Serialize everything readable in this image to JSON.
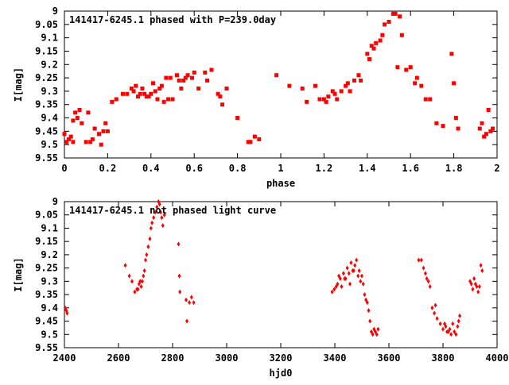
{
  "chart_data": [
    {
      "type": "scatter",
      "title": "141417-6245.1 phased with P=239.0day",
      "xlabel": "phase",
      "ylabel": "I[mag]",
      "xlim": [
        0,
        2
      ],
      "ylim": [
        9.55,
        9
      ],
      "y_inverted": true,
      "xticks": [
        0,
        0.2,
        0.4,
        0.6,
        0.8,
        1,
        1.2,
        1.4,
        1.6,
        1.8,
        2
      ],
      "xtick_labels": [
        "0",
        "0.2",
        "0.4",
        "0.6",
        "0.8",
        "1",
        "1.2",
        "1.4",
        "1.6",
        "1.8",
        "2"
      ],
      "yticks": [
        9,
        9.05,
        9.1,
        9.15,
        9.2,
        9.25,
        9.3,
        9.35,
        9.4,
        9.45,
        9.5,
        9.55
      ],
      "ytick_labels": [
        "9",
        "9.05",
        "9.1",
        "9.15",
        "9.2",
        "9.25",
        "9.3",
        "9.35",
        "9.4",
        "9.45",
        "9.5",
        "9.55"
      ],
      "grid": false,
      "marker_color": "#ff0000",
      "marker": "square",
      "series": [
        {
          "x": [
            0.0,
            0.01,
            0.02,
            0.03,
            0.04,
            0.04,
            0.05,
            0.06,
            0.07,
            0.08,
            0.1,
            0.11,
            0.12,
            0.13,
            0.14,
            0.16,
            0.17,
            0.18,
            0.19,
            0.2,
            0.22,
            0.24,
            0.27,
            0.29,
            0.31,
            0.32,
            0.33,
            0.34,
            0.35,
            0.36,
            0.37,
            0.38,
            0.39,
            0.4,
            0.41,
            0.42,
            0.43,
            0.44,
            0.45,
            0.46,
            0.47,
            0.48,
            0.49,
            0.5,
            0.52,
            0.53,
            0.54,
            0.55,
            0.56,
            0.57,
            0.59,
            0.6,
            0.62,
            0.65,
            0.66,
            0.68,
            0.71,
            0.72,
            0.73,
            0.75,
            0.8,
            0.85,
            0.86,
            0.88,
            0.9,
            0.98,
            1.04,
            1.1,
            1.12,
            1.16,
            1.18,
            1.2,
            1.21,
            1.22,
            1.24,
            1.25,
            1.26,
            1.28,
            1.3,
            1.31,
            1.32,
            1.34,
            1.36,
            1.37,
            1.4,
            1.41,
            1.42,
            1.43,
            1.44,
            1.46,
            1.47,
            1.48,
            1.5,
            1.52,
            1.53,
            1.54,
            1.55,
            1.56,
            1.58,
            1.6,
            1.62,
            1.63,
            1.65,
            1.67,
            1.69,
            1.72,
            1.75,
            1.79,
            1.8,
            1.81,
            1.82,
            1.92,
            1.93,
            1.94,
            1.95,
            1.96,
            1.97,
            1.98
          ],
          "y": [
            9.46,
            9.49,
            9.48,
            9.47,
            9.41,
            9.49,
            9.38,
            9.4,
            9.37,
            9.42,
            9.49,
            9.38,
            9.49,
            9.48,
            9.44,
            9.46,
            9.5,
            9.45,
            9.42,
            9.45,
            9.34,
            9.33,
            9.31,
            9.31,
            9.29,
            9.3,
            9.28,
            9.32,
            9.31,
            9.29,
            9.31,
            9.32,
            9.32,
            9.31,
            9.27,
            9.3,
            9.33,
            9.29,
            9.28,
            9.34,
            9.25,
            9.33,
            9.25,
            9.33,
            9.24,
            9.26,
            9.29,
            9.26,
            9.25,
            9.24,
            9.25,
            9.23,
            9.29,
            9.23,
            9.26,
            9.22,
            9.31,
            9.32,
            9.35,
            9.29,
            9.4,
            9.49,
            9.49,
            9.47,
            9.48,
            9.24,
            9.28,
            9.29,
            9.34,
            9.28,
            9.33,
            9.33,
            9.34,
            9.32,
            9.3,
            9.31,
            9.33,
            9.3,
            9.28,
            9.27,
            9.3,
            9.26,
            9.24,
            9.26,
            9.16,
            9.18,
            9.13,
            9.14,
            9.12,
            9.11,
            9.09,
            9.05,
            9.04,
            9.01,
            9.01,
            9.21,
            9.02,
            9.09,
            9.22,
            9.21,
            9.27,
            9.25,
            9.28,
            9.33,
            9.33,
            9.42,
            9.43,
            9.16,
            9.27,
            9.4,
            9.44,
            9.44,
            9.42,
            9.47,
            9.46,
            9.37,
            9.45,
            9.44
          ]
        }
      ]
    },
    {
      "type": "scatter",
      "title": "141417-6245.1 not phased light curve",
      "xlabel": "hjd0",
      "ylabel": "I[mag]",
      "xlim": [
        2400,
        4000
      ],
      "ylim": [
        9.55,
        9
      ],
      "y_inverted": true,
      "xticks": [
        2400,
        2600,
        2800,
        3000,
        3200,
        3400,
        3600,
        3800,
        4000
      ],
      "xtick_labels": [
        "2400",
        "2600",
        "2800",
        "3000",
        "3200",
        "3400",
        "3600",
        "3800",
        "4000"
      ],
      "yticks": [
        9,
        9.05,
        9.1,
        9.15,
        9.2,
        9.25,
        9.3,
        9.35,
        9.4,
        9.45,
        9.5,
        9.55
      ],
      "ytick_labels": [
        "9",
        "9.05",
        "9.1",
        "9.15",
        "9.2",
        "9.25",
        "9.3",
        "9.35",
        "9.4",
        "9.45",
        "9.5",
        "9.55"
      ],
      "grid": false,
      "marker_color": "#ff0000",
      "marker": "diamond",
      "series": [
        {
          "x": [
            2403,
            2407,
            2410,
            2625,
            2640,
            2650,
            2660,
            2668,
            2672,
            2676,
            2680,
            2684,
            2688,
            2692,
            2696,
            2700,
            2704,
            2710,
            2716,
            2720,
            2724,
            2730,
            2736,
            2742,
            2748,
            2752,
            2756,
            2760,
            2764,
            2770,
            2822,
            2825,
            2827,
            2850,
            2853,
            2862,
            2870,
            2878,
            3390,
            3398,
            3405,
            3410,
            3415,
            3420,
            3425,
            3432,
            3436,
            3440,
            3446,
            3452,
            3456,
            3460,
            3466,
            3470,
            3474,
            3480,
            3486,
            3490,
            3495,
            3500,
            3505,
            3510,
            3515,
            3520,
            3525,
            3530,
            3535,
            3540,
            3545,
            3550,
            3555,
            3560,
            3710,
            3720,
            3728,
            3735,
            3740,
            3746,
            3752,
            3760,
            3768,
            3772,
            3778,
            3790,
            3800,
            3806,
            3810,
            3815,
            3820,
            3825,
            3830,
            3836,
            3842,
            3848,
            3854,
            3858,
            3862,
            3900,
            3905,
            3910,
            3915,
            3920,
            3925,
            3930,
            3935,
            3940,
            3945
          ],
          "y": [
            9.4,
            9.41,
            9.42,
            9.24,
            9.28,
            9.3,
            9.34,
            9.33,
            9.33,
            9.31,
            9.3,
            9.32,
            9.3,
            9.28,
            9.26,
            9.22,
            9.2,
            9.17,
            9.14,
            9.1,
            9.08,
            9.06,
            9.04,
            9.02,
            9.0,
            9.01,
            9.04,
            9.06,
            9.09,
            9.05,
            9.16,
            9.28,
            9.34,
            9.37,
            9.45,
            9.38,
            9.36,
            9.38,
            9.34,
            9.33,
            9.32,
            9.31,
            9.28,
            9.29,
            9.32,
            9.27,
            9.29,
            9.29,
            9.25,
            9.27,
            9.31,
            9.23,
            9.26,
            9.26,
            9.24,
            9.22,
            9.28,
            9.26,
            9.3,
            9.28,
            9.31,
            9.35,
            9.37,
            9.38,
            9.41,
            9.45,
            9.49,
            9.5,
            9.48,
            9.49,
            9.5,
            9.48,
            9.22,
            9.22,
            9.25,
            9.27,
            9.29,
            9.3,
            9.32,
            9.4,
            9.42,
            9.39,
            9.44,
            9.46,
            9.48,
            9.46,
            9.47,
            9.49,
            9.49,
            9.48,
            9.5,
            9.46,
            9.49,
            9.5,
            9.47,
            9.45,
            9.43,
            9.3,
            9.31,
            9.33,
            9.29,
            9.31,
            9.32,
            9.34,
            9.32,
            9.24,
            9.26
          ]
        }
      ]
    }
  ]
}
